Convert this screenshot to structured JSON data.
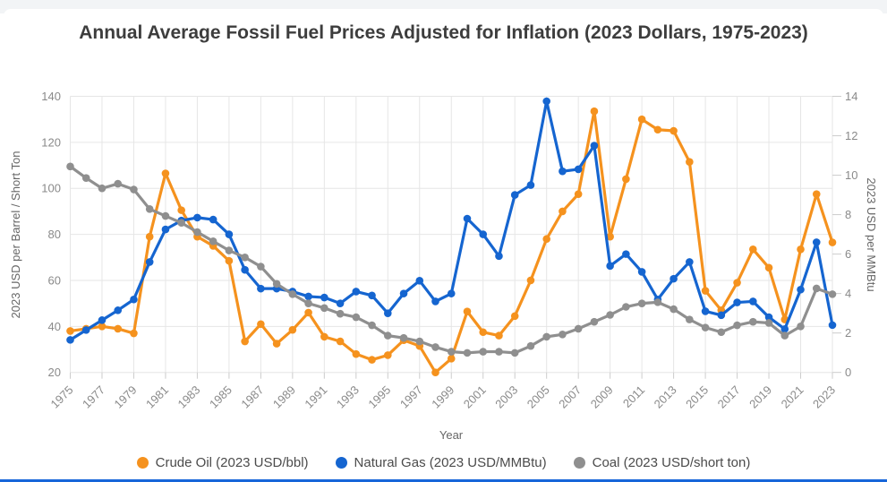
{
  "page": {
    "top_strip_color": "#f2f4f6",
    "bottom_bar_color": "#1766d9",
    "background": "#ffffff"
  },
  "chart_data": {
    "type": "line",
    "title": "Annual Average Fossil Fuel Prices Adjusted for Inflation (2023 Dollars, 1975-2023)",
    "xlabel": "Year",
    "ylabel_left": "2023 USD per Barrel / Short Ton",
    "ylabel_right": "2023 USD per MMBtu",
    "grid": true,
    "legend_position": "bottom",
    "x_tick_step": 2,
    "ylim_left": [
      20,
      140
    ],
    "ytick_step_left": 20,
    "ylim_right": [
      0,
      14
    ],
    "ytick_step_right": 2,
    "x": [
      1975,
      1976,
      1977,
      1978,
      1979,
      1980,
      1981,
      1982,
      1983,
      1984,
      1985,
      1986,
      1987,
      1988,
      1989,
      1990,
      1991,
      1992,
      1993,
      1994,
      1995,
      1996,
      1997,
      1998,
      1999,
      2000,
      2001,
      2002,
      2003,
      2004,
      2005,
      2006,
      2007,
      2008,
      2009,
      2010,
      2011,
      2012,
      2013,
      2014,
      2015,
      2016,
      2017,
      2018,
      2019,
      2020,
      2021,
      2022,
      2023
    ],
    "series": [
      {
        "id": "crude-oil",
        "name": "Crude Oil (2023 USD/bbl)",
        "axis": "left",
        "color": "#F5921E",
        "values": [
          38,
          39,
          40,
          39,
          37,
          79,
          106.5,
          90.5,
          79,
          75,
          68.5,
          33.5,
          41,
          32.5,
          38.5,
          46,
          35.5,
          33.5,
          28,
          25.5,
          27.5,
          34,
          31.5,
          20,
          26,
          46.5,
          37.5,
          36,
          44.5,
          60,
          78,
          90,
          97.5,
          133.5,
          79,
          104,
          130,
          125.5,
          125,
          111.5,
          55.5,
          47,
          59,
          73.5,
          65.5,
          43,
          73.5,
          97.5,
          76.5
        ]
      },
      {
        "id": "natural-gas",
        "name": "Natural Gas (2023 USD/MMBtu)",
        "axis": "right",
        "color": "#1565D0",
        "values": [
          1.65,
          2.15,
          2.65,
          3.15,
          3.7,
          5.6,
          7.25,
          7.7,
          7.85,
          7.75,
          7.0,
          5.2,
          4.25,
          4.25,
          4.1,
          3.85,
          3.8,
          3.5,
          4.1,
          3.9,
          3.0,
          4.0,
          4.65,
          3.6,
          4.0,
          7.8,
          7.0,
          5.9,
          9.0,
          9.5,
          13.75,
          10.2,
          10.3,
          11.5,
          5.4,
          6.0,
          5.1,
          3.7,
          4.75,
          5.6,
          3.1,
          2.9,
          3.55,
          3.6,
          2.8,
          2.2,
          4.2,
          6.6,
          2.4
        ]
      },
      {
        "id": "coal",
        "name": "Coal (2023 USD/short ton)",
        "axis": "left",
        "color": "#8F8F8F",
        "values": [
          109.5,
          104.5,
          100,
          102,
          99.5,
          91,
          88,
          85,
          81,
          77,
          73,
          70,
          66,
          58.5,
          54,
          50,
          48,
          45.5,
          44,
          40.5,
          36,
          35,
          33.5,
          31,
          29,
          28.5,
          29,
          29,
          28.5,
          31.5,
          35.5,
          36.5,
          39,
          42,
          45,
          48.5,
          50,
          50.5,
          47.5,
          43,
          39.5,
          37.5,
          40.5,
          42,
          41.5,
          36,
          40,
          56.5,
          54
        ]
      }
    ]
  }
}
